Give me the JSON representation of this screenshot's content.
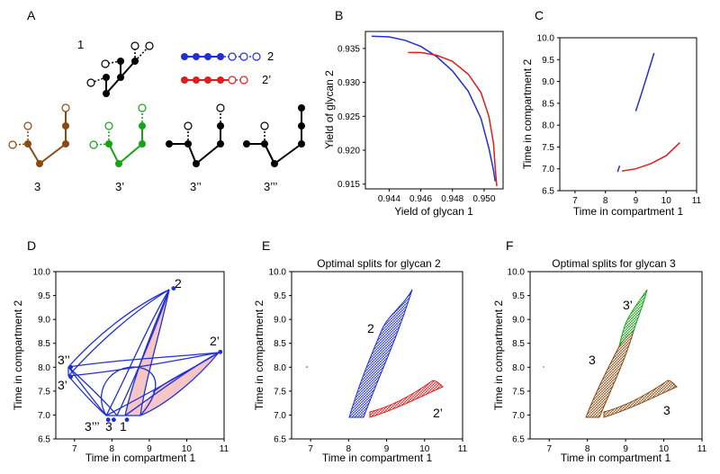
{
  "panel_labels": {
    "A": "A",
    "B": "B",
    "C": "C",
    "D": "D",
    "E": "E",
    "F": "F"
  },
  "glycan_labels": {
    "g1": "1",
    "g2": "2",
    "g2p": "2’",
    "g3": "3",
    "g3p": "3’",
    "g3pp": "3’’",
    "g3ppp": "3’’’"
  },
  "colors": {
    "blue": "#1f2fd4",
    "red": "#e01d1d",
    "brown": "#8b4a12",
    "green": "#17a317",
    "black": "#000000",
    "fill_red": "#f6c6c6"
  },
  "chart_data": [
    {
      "id": "B",
      "type": "line",
      "title": "",
      "xlabel": "Yield of glycan 1",
      "ylabel": "Yield of glycan 2",
      "xlim": [
        0.9425,
        0.9512
      ],
      "ylim": [
        0.9143,
        0.9375
      ],
      "xticks": [
        "0.944",
        "0.946",
        "0.948",
        "0.950"
      ],
      "yticks": [
        "0.915",
        "0.920",
        "0.925",
        "0.930",
        "0.935"
      ],
      "series": [
        {
          "name": "blue",
          "color": "#1f2fd4",
          "x": [
            0.9429,
            0.944,
            0.945,
            0.946,
            0.947,
            0.948,
            0.949,
            0.9498,
            0.9503,
            0.9506,
            0.9507
          ],
          "y": [
            0.9368,
            0.9367,
            0.9362,
            0.9353,
            0.9338,
            0.9317,
            0.9287,
            0.9247,
            0.9203,
            0.917,
            0.9154
          ]
        },
        {
          "name": "red",
          "color": "#e01d1d",
          "x": [
            0.9452,
            0.946,
            0.947,
            0.948,
            0.949,
            0.9498,
            0.9503,
            0.9506,
            0.9507,
            0.9508
          ],
          "y": [
            0.9344,
            0.9344,
            0.934,
            0.9331,
            0.9312,
            0.9285,
            0.925,
            0.921,
            0.9175,
            0.9147
          ]
        }
      ]
    },
    {
      "id": "C",
      "type": "line",
      "xlabel": "Time in compartment 1",
      "ylabel": "Time in compartment 2",
      "xlim": [
        6.5,
        11
      ],
      "ylim": [
        6.5,
        10
      ],
      "xticks": [
        "7",
        "8",
        "9",
        "10",
        "11"
      ],
      "yticks": [
        "6.5",
        "7.0",
        "7.5",
        "8.0",
        "8.5",
        "9.0",
        "9.5",
        "10.0"
      ],
      "series": [
        {
          "name": "blue-upper",
          "color": "#1f2fd4",
          "x": [
            9.0,
            9.2,
            9.4,
            9.6
          ],
          "y": [
            8.32,
            8.75,
            9.2,
            9.65
          ]
        },
        {
          "name": "blue-lower",
          "color": "#1f2fd4",
          "x": [
            8.4,
            8.47
          ],
          "y": [
            6.93,
            7.07
          ]
        },
        {
          "name": "red",
          "color": "#e01d1d",
          "x": [
            8.55,
            9.0,
            9.5,
            10.0,
            10.45
          ],
          "y": [
            6.95,
            7.0,
            7.12,
            7.3,
            7.6
          ]
        }
      ]
    },
    {
      "id": "D",
      "type": "line",
      "xlabel": "Time in compartment 1",
      "ylabel": "Time in compartment 2",
      "xlim": [
        6.5,
        11
      ],
      "ylim": [
        6.5,
        10
      ],
      "xticks": [
        "7",
        "8",
        "9",
        "10",
        "11"
      ],
      "yticks": [
        "6.5",
        "7.0",
        "7.5",
        "8.0",
        "8.5",
        "9.0",
        "9.5",
        "10.0"
      ],
      "points": [
        {
          "label": "2",
          "x": 9.65,
          "y": 9.65
        },
        {
          "label": "2’",
          "x": 10.9,
          "y": 8.32
        },
        {
          "label": "3’’",
          "x": 6.9,
          "y": 8.0
        },
        {
          "label": "3’",
          "x": 6.9,
          "y": 7.8
        },
        {
          "label": "3’’’",
          "x": 7.9,
          "y": 6.9
        },
        {
          "label": "3",
          "x": 8.05,
          "y": 6.9
        },
        {
          "label": "1",
          "x": 8.4,
          "y": 6.9
        }
      ]
    },
    {
      "id": "E",
      "type": "area",
      "title": "Optimal splits for glycan 2",
      "xlabel": "Time in compartment 1",
      "ylabel": "Time in compartment 2",
      "xlim": [
        6.5,
        11
      ],
      "ylim": [
        6.5,
        10
      ],
      "xticks": [
        "7",
        "8",
        "9",
        "10",
        "11"
      ],
      "yticks": [
        "6.5",
        "7.0",
        "7.5",
        "8.0",
        "8.5",
        "9.0",
        "9.5",
        "10.0"
      ],
      "regions": [
        {
          "label": "2",
          "color": "#1f2fd4"
        },
        {
          "label": "2’",
          "color": "#e01d1d"
        }
      ]
    },
    {
      "id": "F",
      "type": "area",
      "title": "Optimal splits for glycan 3",
      "xlabel": "Time in compartment 1",
      "ylabel": "Time in compartment 2",
      "xlim": [
        6.5,
        11
      ],
      "ylim": [
        6.5,
        10
      ],
      "xticks": [
        "7",
        "8",
        "9",
        "10",
        "11"
      ],
      "yticks": [
        "6.5",
        "7.0",
        "7.5",
        "8.0",
        "8.5",
        "9.0",
        "9.5",
        "10.0"
      ],
      "regions": [
        {
          "label": "3",
          "color": "#8b4a12"
        },
        {
          "label": "3’",
          "color": "#17a317"
        },
        {
          "label": "3",
          "color": "#8b4a12"
        }
      ]
    }
  ]
}
